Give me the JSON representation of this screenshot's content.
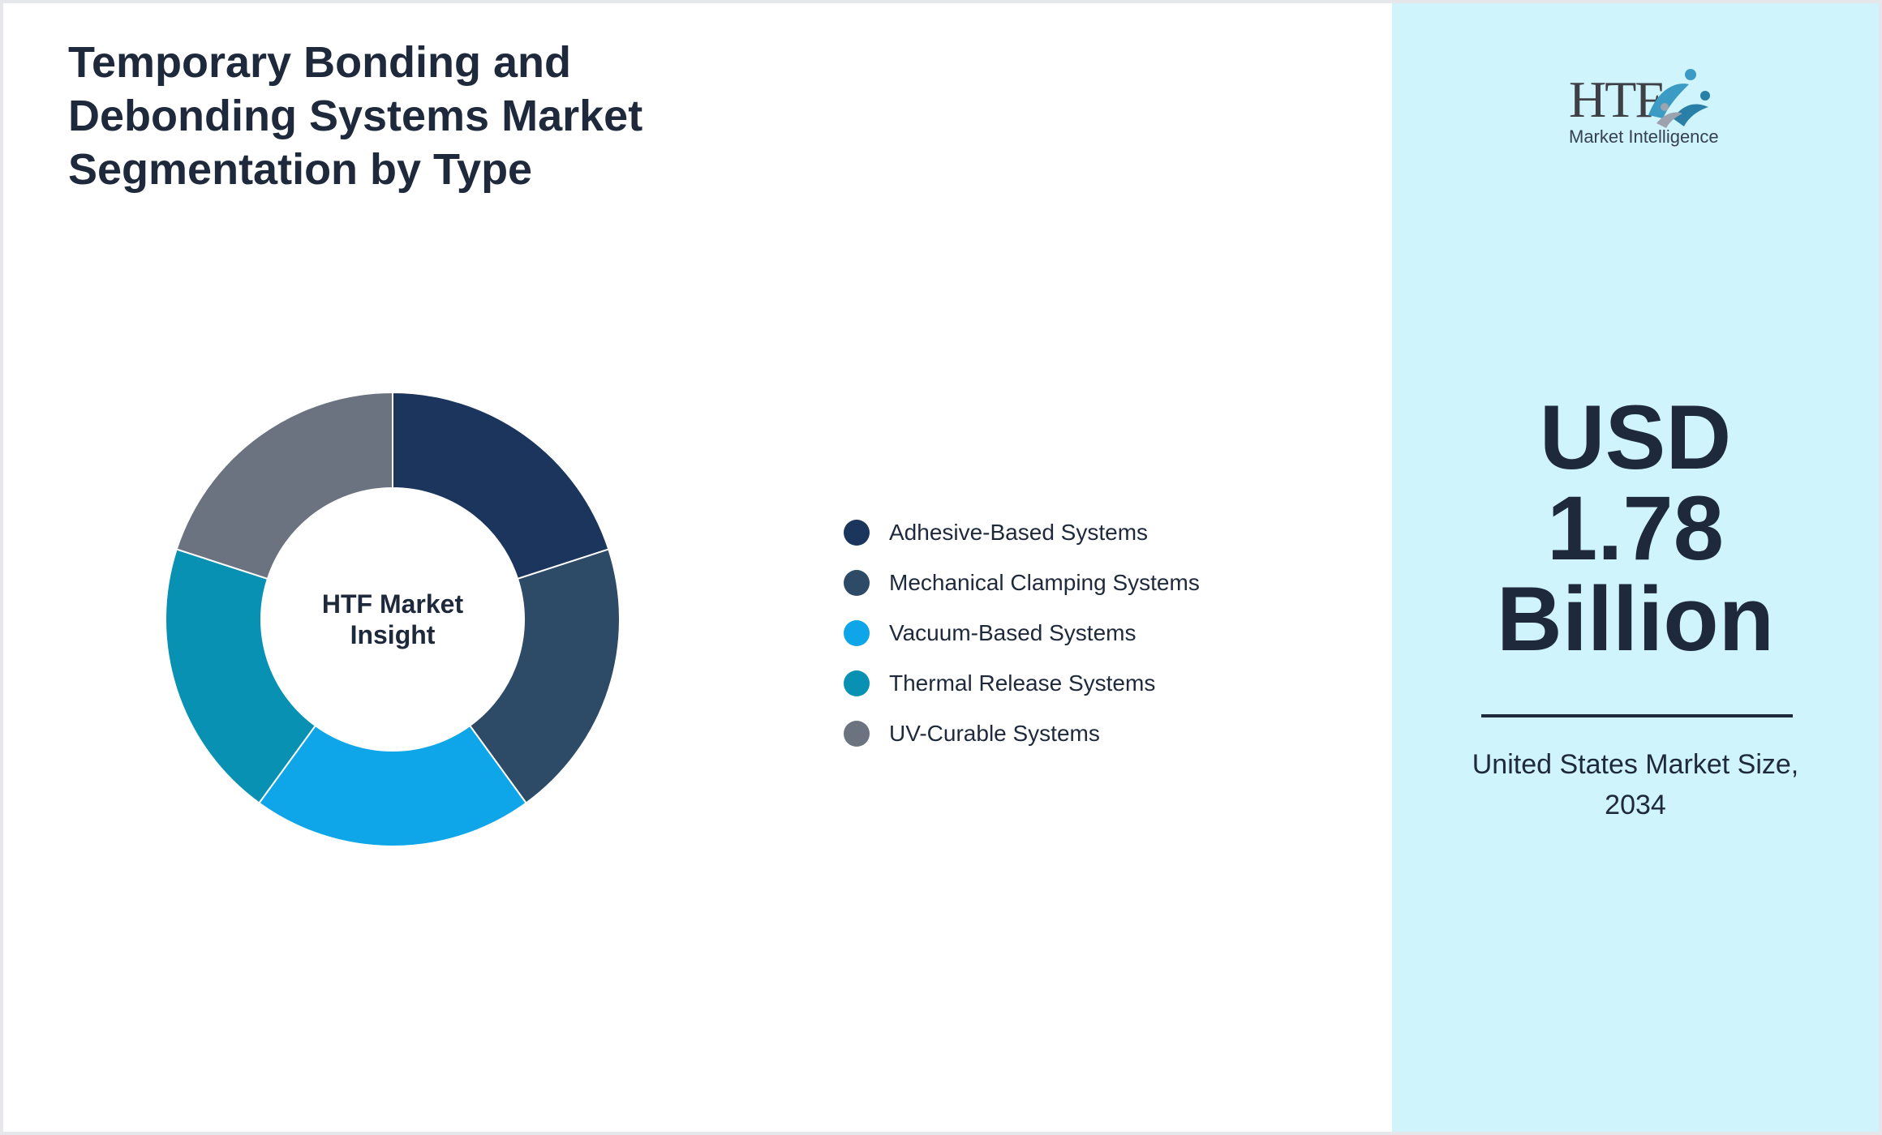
{
  "title_lines": [
    "Temporary Bonding and",
    "Debonding Systems Market",
    "Segmentation by Type"
  ],
  "center_label_lines": [
    "HTF Market",
    "Insight"
  ],
  "logo": {
    "main": "HTF",
    "sub": "Market Intelligence"
  },
  "market_value_lines": [
    "USD",
    "1.78",
    "Billion"
  ],
  "caption_lines": [
    "United States Market Size,",
    "2034"
  ],
  "colors": {
    "background": "#ffffff",
    "side_panel": "#cff4fb",
    "text": "#1e293b"
  },
  "chart_data": {
    "type": "pie",
    "variant": "donut",
    "title": "Temporary Bonding and Debonding Systems Market Segmentation by Type",
    "legend_position": "right",
    "series": [
      {
        "name": "Adhesive-Based Systems",
        "value": 20,
        "color": "#1b355c"
      },
      {
        "name": "Mechanical Clamping Systems",
        "value": 20,
        "color": "#2d4a66"
      },
      {
        "name": "Vacuum-Based Systems",
        "value": 20,
        "color": "#0ea5e9"
      },
      {
        "name": "Thermal Release Systems",
        "value": 20,
        "color": "#0891b2"
      },
      {
        "name": "UV-Curable Systems",
        "value": 20,
        "color": "#6b7280"
      }
    ]
  }
}
